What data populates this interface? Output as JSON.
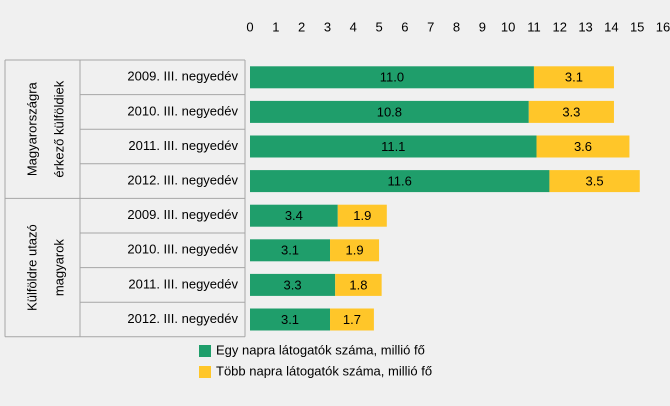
{
  "chart_data": {
    "type": "stacked-bar-horizontal",
    "groups": [
      {
        "name": [
          "Magyarországra",
          "érkező külföldiek"
        ],
        "categories": [
          "2009. III. negyedév",
          "2010. III. negyedév",
          "2011. III. negyedév",
          "2012. III. negyedév"
        ]
      },
      {
        "name": [
          "Külföldre utazó",
          "magyarok"
        ],
        "categories": [
          "2009. III. negyedév",
          "2010. III. negyedév",
          "2011. III. negyedév",
          "2012. III. negyedév"
        ]
      }
    ],
    "series": [
      {
        "name": "Egy napra látogatók száma, millió fő",
        "color": "#1f9e6b",
        "values": [
          11.0,
          10.8,
          11.1,
          11.6,
          3.4,
          3.1,
          3.3,
          3.1
        ],
        "value_labels": [
          "11.0",
          "10.8",
          "11.1",
          "11.6",
          "3.4",
          "3.1",
          "3.3",
          "3.1"
        ]
      },
      {
        "name": "Több napra látogatók száma, millió fő",
        "color": "#ffc629",
        "values": [
          3.1,
          3.3,
          3.6,
          3.5,
          1.9,
          1.9,
          1.8,
          1.7
        ],
        "value_labels": [
          "3.1",
          "3.3",
          "3.6",
          "3.5",
          "1.9",
          "1.9",
          "1.8",
          "1.7"
        ]
      }
    ],
    "xlim": [
      0,
      16
    ],
    "xticks": [
      0,
      1,
      2,
      3,
      4,
      5,
      6,
      7,
      8,
      9,
      10,
      11,
      12,
      13,
      14,
      15,
      16
    ],
    "legend": "bottom"
  }
}
